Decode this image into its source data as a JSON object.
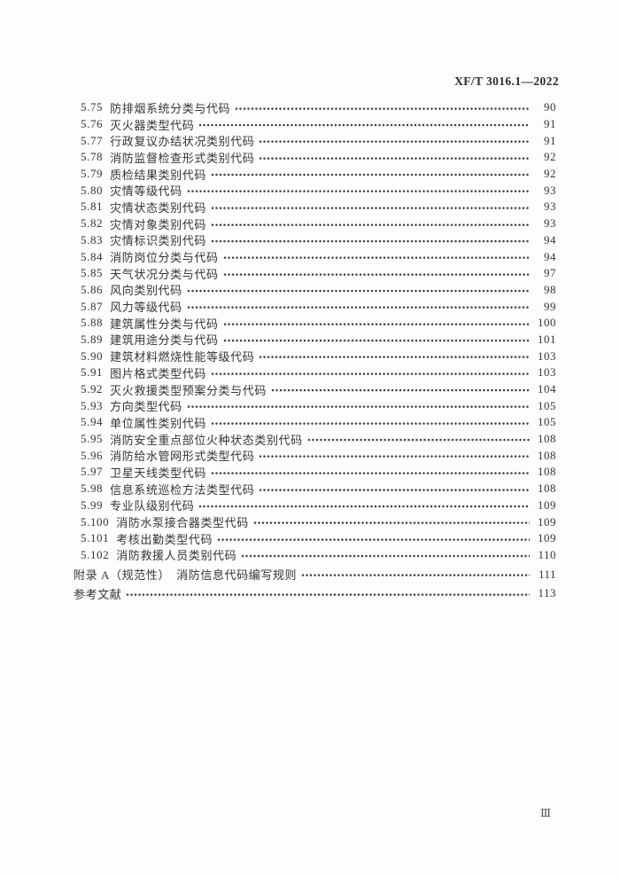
{
  "header": {
    "standard_code": "XF/T 3016.1—2022"
  },
  "footer": {
    "page_number": "Ⅲ"
  },
  "colors": {
    "text": "#343438",
    "background": "#fdfdfd"
  },
  "toc": {
    "entries": [
      {
        "num": "5.75",
        "title": "防排烟系统分类与代码",
        "page": "90"
      },
      {
        "num": "5.76",
        "title": "灭火器类型代码",
        "page": "91"
      },
      {
        "num": "5.77",
        "title": "行政复议办结状况类别代码",
        "page": "91"
      },
      {
        "num": "5.78",
        "title": "消防监督检查形式类别代码",
        "page": "92"
      },
      {
        "num": "5.79",
        "title": "质检结果类别代码",
        "page": "92"
      },
      {
        "num": "5.80",
        "title": "灾情等级代码",
        "page": "93"
      },
      {
        "num": "5.81",
        "title": "灾情状态类别代码",
        "page": "93"
      },
      {
        "num": "5.82",
        "title": "灾情对象类别代码",
        "page": "93"
      },
      {
        "num": "5.83",
        "title": "灾情标识类别代码",
        "page": "94"
      },
      {
        "num": "5.84",
        "title": "消防岗位分类与代码",
        "page": "94"
      },
      {
        "num": "5.85",
        "title": "天气状况分类与代码",
        "page": "97"
      },
      {
        "num": "5.86",
        "title": "风向类别代码",
        "page": "98"
      },
      {
        "num": "5.87",
        "title": "风力等级代码",
        "page": "99"
      },
      {
        "num": "5.88",
        "title": "建筑属性分类与代码",
        "page": "100"
      },
      {
        "num": "5.89",
        "title": "建筑用途分类与代码",
        "page": "101"
      },
      {
        "num": "5.90",
        "title": "建筑材料燃烧性能等级代码",
        "page": "103"
      },
      {
        "num": "5.91",
        "title": "图片格式类型代码",
        "page": "103"
      },
      {
        "num": "5.92",
        "title": "灭火救援类型预案分类与代码",
        "page": "104"
      },
      {
        "num": "5.93",
        "title": "方向类型代码",
        "page": "105"
      },
      {
        "num": "5.94",
        "title": "单位属性类别代码",
        "page": "105"
      },
      {
        "num": "5.95",
        "title": "消防安全重点部位火种状态类别代码",
        "page": "108"
      },
      {
        "num": "5.96",
        "title": "消防给水管网形式类型代码",
        "page": "108"
      },
      {
        "num": "5.97",
        "title": "卫星天线类型代码",
        "page": "108"
      },
      {
        "num": "5.98",
        "title": "信息系统巡检方法类型代码",
        "page": "108"
      },
      {
        "num": "5.99",
        "title": "专业队级别代码",
        "page": "109"
      },
      {
        "num": "5.100",
        "title": "消防水泵接合器类型代码",
        "page": "109"
      },
      {
        "num": "5.101",
        "title": "考核出勤类型代码",
        "page": "109"
      },
      {
        "num": "5.102",
        "title": "消防救援人员类别代码",
        "page": "110"
      },
      {
        "num": "",
        "title": "附录 A（规范性）　消防信息代码编写规则",
        "page": "111"
      },
      {
        "num": "",
        "title": "参考文献",
        "page": "113"
      }
    ]
  }
}
